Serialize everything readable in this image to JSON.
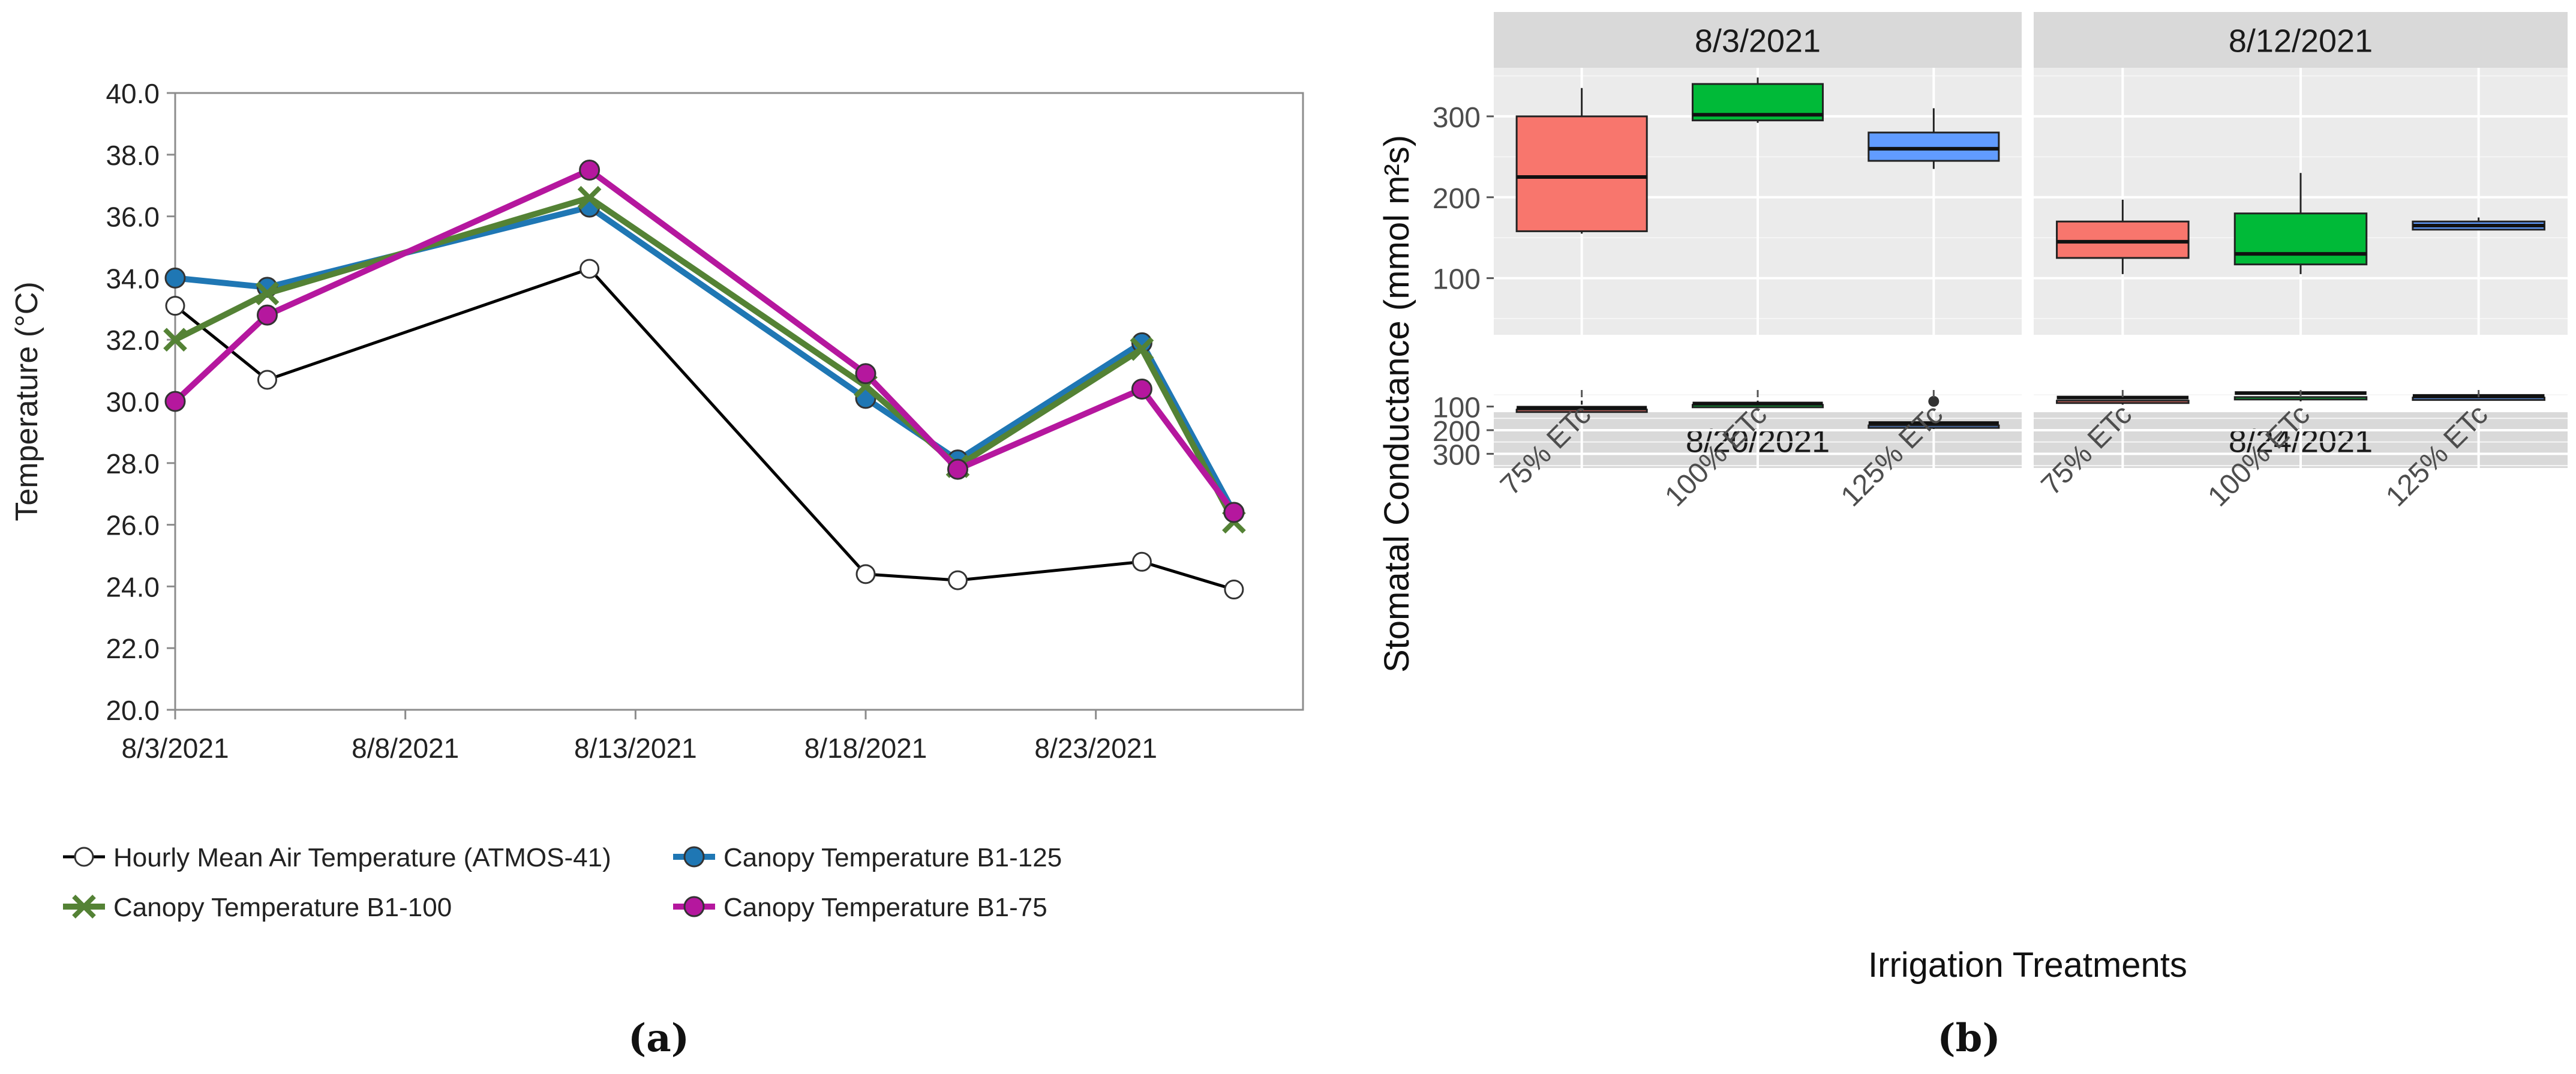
{
  "panel_labels": {
    "a": "(a)",
    "b": "(b)"
  },
  "chart_data": [
    {
      "type": "line",
      "ylabel": "Temperature (°C)",
      "xlabel": "",
      "ylim": [
        20,
        40
      ],
      "yticks": [
        "20.0",
        "22.0",
        "24.0",
        "26.0",
        "28.0",
        "30.0",
        "32.0",
        "34.0",
        "36.0",
        "38.0",
        "40.0"
      ],
      "xlim_days": [
        0,
        24.5
      ],
      "x_tick_labels": [
        {
          "label": "8/3/2021",
          "day": 0
        },
        {
          "label": "8/8/2021",
          "day": 5
        },
        {
          "label": "8/13/2021",
          "day": 10
        },
        {
          "label": "8/18/2021",
          "day": 15
        },
        {
          "label": "8/23/2021",
          "day": 20
        }
      ],
      "series": [
        {
          "name": "Hourly Mean Air Temperature (ATMOS-41)",
          "color": "#000000",
          "marker": "open-circle",
          "x_days": [
            0,
            2,
            9,
            15,
            17,
            21,
            23
          ],
          "values": [
            33.1,
            30.7,
            34.3,
            24.4,
            24.2,
            24.8,
            23.9
          ]
        },
        {
          "name": "Canopy Temperature B1-125",
          "color": "#1f77b4",
          "marker": "circle",
          "x_days": [
            0,
            2,
            9,
            15,
            17,
            21,
            23
          ],
          "values": [
            34.0,
            33.7,
            36.3,
            30.1,
            28.1,
            31.9,
            26.4
          ]
        },
        {
          "name": "Canopy Temperature B1-100",
          "color": "#548235",
          "marker": "x",
          "x_days": [
            0,
            2,
            9,
            15,
            17,
            21,
            23
          ],
          "values": [
            32.0,
            33.5,
            36.6,
            30.5,
            27.9,
            31.7,
            26.1
          ]
        },
        {
          "name": "Canopy Temperature B1-75",
          "color": "#b5179e",
          "marker": "circle",
          "x_days": [
            0,
            2,
            9,
            15,
            17,
            21,
            23
          ],
          "values": [
            30.0,
            32.8,
            37.5,
            30.9,
            27.8,
            30.4,
            26.4
          ]
        }
      ]
    },
    {
      "type": "box",
      "ylabel": "Stomatal Conductance (mmol m²s)",
      "xlabel": "Irrigation Treatments",
      "ylim": [
        30,
        360
      ],
      "yticks": [
        100,
        200,
        300
      ],
      "categories": [
        "75% ETc",
        "100% ETc",
        "125% ETc"
      ],
      "colors": [
        "#f8766d",
        "#00ba38",
        "#619cff"
      ],
      "facets": [
        {
          "title": "8/3/2021",
          "boxes": [
            {
              "whisker_low": 155,
              "q1": 158,
              "median": 225,
              "q3": 300,
              "whisker_high": 335,
              "outliers": []
            },
            {
              "whisker_low": 292,
              "q1": 295,
              "median": 302,
              "q3": 340,
              "whisker_high": 348,
              "outliers": []
            },
            {
              "whisker_low": 235,
              "q1": 245,
              "median": 260,
              "q3": 280,
              "whisker_high": 310,
              "outliers": []
            }
          ]
        },
        {
          "title": "8/12/2021",
          "boxes": [
            {
              "whisker_low": 105,
              "q1": 125,
              "median": 145,
              "q3": 170,
              "whisker_high": 197,
              "outliers": []
            },
            {
              "whisker_low": 105,
              "q1": 117,
              "median": 130,
              "q3": 180,
              "whisker_high": 230,
              "outliers": []
            },
            {
              "whisker_low": 160,
              "q1": 160,
              "median": 165,
              "q3": 170,
              "whisker_high": 175,
              "outliers": []
            }
          ]
        },
        {
          "title": "8/20/2021",
          "boxes": [
            {
              "whisker_low": 75,
              "q1": 92,
              "median": 105,
              "q3": 113,
              "whisker_high": 120,
              "outliers": []
            },
            {
              "whisker_low": 75,
              "q1": 80,
              "median": 87,
              "q3": 93,
              "whisker_high": 97,
              "outliers": []
            },
            {
              "whisker_low": 145,
              "q1": 145,
              "median": 170,
              "q3": 180,
              "whisker_high": 195,
              "outliers": [
                78
              ]
            }
          ]
        },
        {
          "title": "8/24/2021",
          "boxes": [
            {
              "whisker_low": 50,
              "q1": 50,
              "median": 62,
              "q3": 75,
              "whisker_high": 92,
              "outliers": []
            },
            {
              "whisker_low": 42,
              "q1": 42,
              "median": 43,
              "q3": 60,
              "whisker_high": 78,
              "outliers": []
            },
            {
              "whisker_low": 45,
              "q1": 48,
              "median": 55,
              "q3": 62,
              "whisker_high": 70,
              "outliers": []
            }
          ]
        }
      ]
    }
  ]
}
